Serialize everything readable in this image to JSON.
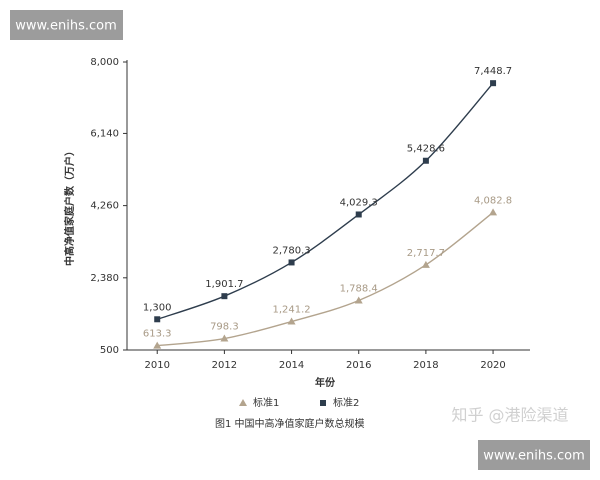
{
  "chart_data": {
    "type": "line",
    "y_label": "中高净值家庭户数（万户）",
    "x_label": "年份",
    "caption": "图1   中国中高净值家庭户数总规模",
    "x": [
      2010,
      2012,
      2014,
      2016,
      2018,
      2020
    ],
    "xlim": [
      2009.1,
      2021.1
    ],
    "xticks": [
      2010,
      2012,
      2014,
      2016,
      2018,
      2020
    ],
    "ylim": [
      500,
      8000
    ],
    "yticks": [
      500,
      {
        "value": 2380,
        "label": "2,380"
      },
      {
        "value": 4260,
        "label": "4,260"
      },
      {
        "value": 6140,
        "label": "6,140"
      },
      {
        "value": 8000,
        "label": "8,000"
      }
    ],
    "grid": false,
    "legend": "bottom",
    "series": [
      {
        "name": "标准1",
        "color": "#b3a48e",
        "marker": "triangle",
        "values": [
          613.3,
          798.3,
          1241.2,
          1788.4,
          2717.7,
          4082.8
        ],
        "value_labels": [
          "613.3",
          "798.3",
          "1,241.2",
          "1,788.4",
          "2,717.7",
          "4,082.8"
        ]
      },
      {
        "name": "标准2",
        "color": "#2e3d4d",
        "marker": "square",
        "values": [
          1300,
          1901.7,
          2780.3,
          4029.3,
          5428.6,
          7448.7
        ],
        "value_labels": [
          "1,300",
          "1,901.7",
          "2,780.3",
          "4,029.3",
          "5,428.6",
          "7,448.7"
        ]
      }
    ]
  },
  "overlay": {
    "site_top": "www.enihs.com",
    "site_bottom": "www.enihs.com",
    "zhihu": "知乎 @港险渠道"
  }
}
